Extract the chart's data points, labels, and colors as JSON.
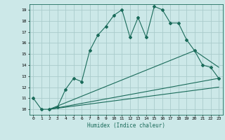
{
  "xlabel": "Humidex (Indice chaleur)",
  "bg_color": "#cce8e8",
  "grid_color": "#aacccc",
  "line_color": "#1a6b5a",
  "xlim": [
    -0.5,
    23.5
  ],
  "ylim": [
    9.5,
    19.5
  ],
  "xticks": [
    0,
    1,
    2,
    3,
    4,
    5,
    6,
    7,
    8,
    9,
    10,
    11,
    12,
    13,
    14,
    15,
    16,
    17,
    18,
    19,
    20,
    21,
    22,
    23
  ],
  "yticks": [
    10,
    11,
    12,
    13,
    14,
    15,
    16,
    17,
    18,
    19
  ],
  "series": [
    [
      0,
      11
    ],
    [
      1,
      10
    ],
    [
      2,
      10
    ],
    [
      3,
      10.2
    ],
    [
      4,
      11.8
    ],
    [
      5,
      12.8
    ],
    [
      6,
      12.5
    ],
    [
      7,
      15.3
    ],
    [
      8,
      16.7
    ],
    [
      9,
      17.5
    ],
    [
      10,
      18.5
    ],
    [
      11,
      19.0
    ],
    [
      12,
      16.5
    ],
    [
      13,
      18.3
    ],
    [
      14,
      16.5
    ],
    [
      15,
      19.3
    ],
    [
      16,
      19.0
    ],
    [
      17,
      17.8
    ],
    [
      18,
      17.8
    ],
    [
      19,
      16.3
    ],
    [
      20,
      15.3
    ],
    [
      21,
      14.0
    ],
    [
      22,
      13.8
    ],
    [
      23,
      12.8
    ]
  ],
  "line2": [
    [
      2,
      10
    ],
    [
      20,
      15.3
    ],
    [
      23,
      13.8
    ]
  ],
  "line3": [
    [
      2,
      10
    ],
    [
      23,
      12.8
    ]
  ],
  "line4": [
    [
      2,
      10
    ],
    [
      23,
      12.0
    ]
  ]
}
